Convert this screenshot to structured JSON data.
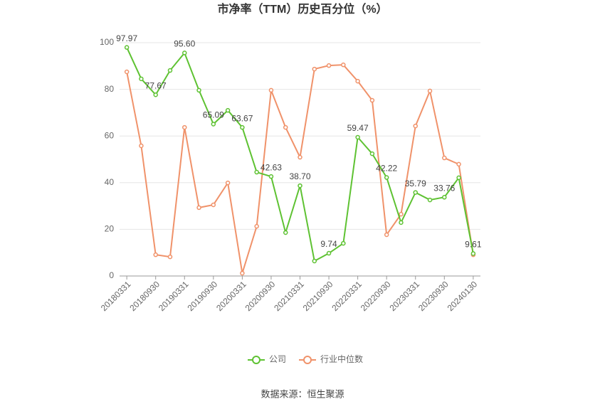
{
  "chart_data": {
    "type": "line",
    "title": "市净率（TTM）历史百分位（%）",
    "categories": [
      "20180331",
      null,
      "20180930",
      null,
      "20190331",
      null,
      "20190930",
      null,
      "20200331",
      null,
      "20200930",
      null,
      "20210331",
      null,
      "20210930",
      null,
      "20220331",
      null,
      "20220930",
      null,
      "20230331",
      null,
      "20230930",
      null,
      "20240130"
    ],
    "series": [
      {
        "name": "公司",
        "color": "#5ec232",
        "values": [
          97.97,
          84.5,
          77.67,
          88.1,
          95.6,
          79.6,
          65.09,
          71.0,
          63.67,
          44.5,
          42.63,
          18.6,
          38.7,
          6.4,
          9.74,
          14.0,
          59.47,
          52.4,
          42.22,
          22.9,
          35.79,
          32.6,
          33.76,
          42.1,
          9.61
        ],
        "value_labels": [
          "97.97",
          null,
          "77.67",
          null,
          "95.60",
          null,
          "65.09",
          null,
          "63.67",
          null,
          "42.63",
          null,
          "38.70",
          null,
          "9.74",
          null,
          "59.47",
          null,
          "42.22",
          null,
          "35.79",
          null,
          "33.76",
          null,
          "9.61"
        ]
      },
      {
        "name": "行业中位数",
        "color": "#f0926a",
        "values": [
          87.5,
          55.8,
          9.1,
          8.2,
          63.7,
          29.3,
          30.5,
          39.9,
          1.2,
          21.3,
          79.6,
          63.7,
          50.9,
          88.7,
          90.2,
          90.5,
          83.5,
          75.3,
          17.7,
          26.5,
          64.3,
          79.3,
          50.6,
          47.9,
          9.1
        ]
      }
    ],
    "ylim": [
      0,
      100
    ],
    "yticks": [
      0,
      20,
      40,
      60,
      80,
      100
    ],
    "grid": true,
    "legend": "bottom",
    "source": "数据来源：恒生聚源"
  }
}
